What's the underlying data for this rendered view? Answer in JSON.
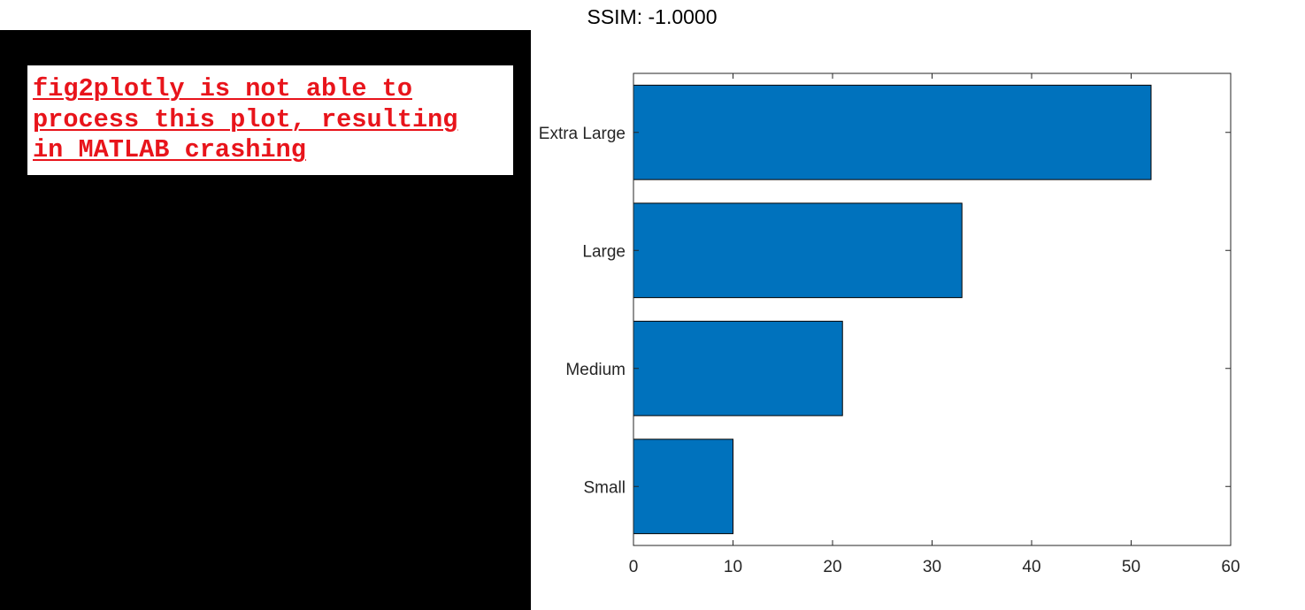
{
  "header": {
    "ssim_label": "SSIM: -1.0000"
  },
  "error_panel": {
    "message_lines": [
      "fig2plotly is not able to",
      "process this plot, resulting",
      "in MATLAB crashing"
    ]
  },
  "colors": {
    "bar_fill": "#0072bd",
    "bar_edge": "#000000",
    "error_text": "#e8141b",
    "panel_background": "#000000"
  },
  "chart_data": {
    "type": "bar",
    "orientation": "horizontal",
    "categories": [
      "Small",
      "Medium",
      "Large",
      "Extra Large"
    ],
    "values": [
      10,
      21,
      33,
      52
    ],
    "xlim": [
      0,
      60
    ],
    "xticks": [
      0,
      10,
      20,
      30,
      40,
      50,
      60
    ],
    "title": "",
    "xlabel": "",
    "ylabel": "",
    "grid": false
  }
}
